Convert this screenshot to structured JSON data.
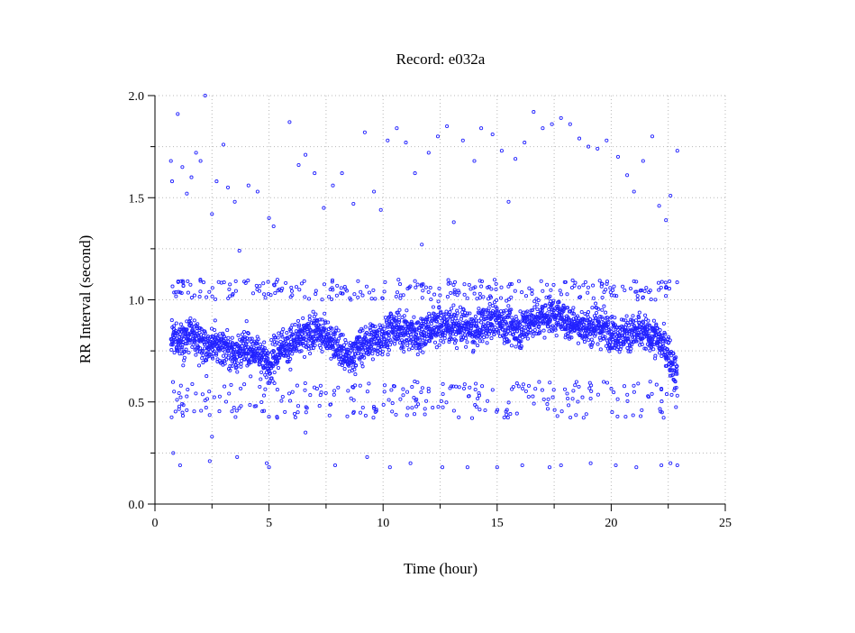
{
  "chart_data": {
    "type": "scatter",
    "title": "Record:  e032a",
    "xlabel": "Time (hour)",
    "ylabel": "RR Interval (second)",
    "xlim": [
      0,
      25
    ],
    "ylim": [
      0,
      2
    ],
    "x_ticks": [
      0,
      5,
      10,
      15,
      20,
      25
    ],
    "x_tick_labels": [
      "0",
      "5",
      "10",
      "15",
      "20",
      "25"
    ],
    "y_ticks": [
      0,
      0.5,
      1,
      1.5,
      2
    ],
    "y_tick_labels": [
      "0.0",
      "0.5",
      "1.0",
      "1.5",
      "2.0"
    ],
    "grid": true,
    "marker": "open-circle",
    "point_color": "#2222ff",
    "recording_span_hours": [
      0.7,
      22.9
    ],
    "dense_band": [
      [
        0.7,
        0.8
      ],
      [
        1.0,
        0.81
      ],
      [
        1.5,
        0.82
      ],
      [
        2.0,
        0.8
      ],
      [
        2.3,
        0.75
      ],
      [
        2.5,
        0.78
      ],
      [
        3.0,
        0.77
      ],
      [
        3.5,
        0.74
      ],
      [
        4.0,
        0.76
      ],
      [
        4.5,
        0.74
      ],
      [
        5.0,
        0.68
      ],
      [
        5.5,
        0.77
      ],
      [
        6.0,
        0.79
      ],
      [
        6.5,
        0.81
      ],
      [
        7.0,
        0.84
      ],
      [
        7.5,
        0.83
      ],
      [
        8.0,
        0.77
      ],
      [
        8.5,
        0.71
      ],
      [
        9.0,
        0.77
      ],
      [
        9.5,
        0.8
      ],
      [
        10.0,
        0.82
      ],
      [
        10.5,
        0.86
      ],
      [
        11.0,
        0.85
      ],
      [
        11.5,
        0.82
      ],
      [
        12.0,
        0.86
      ],
      [
        12.5,
        0.88
      ],
      [
        13.0,
        0.87
      ],
      [
        13.5,
        0.87
      ],
      [
        14.0,
        0.84
      ],
      [
        14.5,
        0.89
      ],
      [
        15.0,
        0.9
      ],
      [
        15.5,
        0.87
      ],
      [
        16.0,
        0.86
      ],
      [
        16.5,
        0.9
      ],
      [
        17.0,
        0.92
      ],
      [
        17.5,
        0.93
      ],
      [
        18.0,
        0.9
      ],
      [
        18.5,
        0.88
      ],
      [
        19.0,
        0.86
      ],
      [
        19.5,
        0.87
      ],
      [
        20.0,
        0.85
      ],
      [
        20.5,
        0.83
      ],
      [
        21.0,
        0.84
      ],
      [
        21.5,
        0.84
      ],
      [
        22.0,
        0.81
      ],
      [
        22.5,
        0.74
      ],
      [
        22.9,
        0.62
      ]
    ],
    "band_spread": 0.07,
    "outliers": [
      [
        0.7,
        1.68
      ],
      [
        0.75,
        1.58
      ],
      [
        1.0,
        1.91
      ],
      [
        1.2,
        1.65
      ],
      [
        1.4,
        1.52
      ],
      [
        1.6,
        1.6
      ],
      [
        1.8,
        1.72
      ],
      [
        2.0,
        1.68
      ],
      [
        2.2,
        2.0
      ],
      [
        2.5,
        1.42
      ],
      [
        2.7,
        1.58
      ],
      [
        3.0,
        1.76
      ],
      [
        3.2,
        1.55
      ],
      [
        3.5,
        1.48
      ],
      [
        3.7,
        1.24
      ],
      [
        4.1,
        1.56
      ],
      [
        4.5,
        1.53
      ],
      [
        5.0,
        1.4
      ],
      [
        5.2,
        1.36
      ],
      [
        5.9,
        1.87
      ],
      [
        6.3,
        1.66
      ],
      [
        6.6,
        1.71
      ],
      [
        7.0,
        1.62
      ],
      [
        7.4,
        1.45
      ],
      [
        7.8,
        1.56
      ],
      [
        8.2,
        1.62
      ],
      [
        8.7,
        1.47
      ],
      [
        9.2,
        1.82
      ],
      [
        9.6,
        1.53
      ],
      [
        9.9,
        1.44
      ],
      [
        10.2,
        1.78
      ],
      [
        10.6,
        1.84
      ],
      [
        11.0,
        1.77
      ],
      [
        11.4,
        1.62
      ],
      [
        11.7,
        1.27
      ],
      [
        12.0,
        1.72
      ],
      [
        12.4,
        1.8
      ],
      [
        12.8,
        1.85
      ],
      [
        13.1,
        1.38
      ],
      [
        13.5,
        1.78
      ],
      [
        14.0,
        1.68
      ],
      [
        14.3,
        1.84
      ],
      [
        14.8,
        1.81
      ],
      [
        15.2,
        1.73
      ],
      [
        15.5,
        1.48
      ],
      [
        15.8,
        1.69
      ],
      [
        16.2,
        1.77
      ],
      [
        16.6,
        1.92
      ],
      [
        17.0,
        1.84
      ],
      [
        17.4,
        1.86
      ],
      [
        17.8,
        1.89
      ],
      [
        18.2,
        1.86
      ],
      [
        18.6,
        1.79
      ],
      [
        19.0,
        1.75
      ],
      [
        19.4,
        1.74
      ],
      [
        19.8,
        1.78
      ],
      [
        20.3,
        1.7
      ],
      [
        20.7,
        1.61
      ],
      [
        21.0,
        1.53
      ],
      [
        21.4,
        1.68
      ],
      [
        21.8,
        1.8
      ],
      [
        22.1,
        1.46
      ],
      [
        22.4,
        1.39
      ],
      [
        22.6,
        1.51
      ],
      [
        22.9,
        1.73
      ],
      [
        0.8,
        0.25
      ],
      [
        1.1,
        0.19
      ],
      [
        2.4,
        0.21
      ],
      [
        2.5,
        0.33
      ],
      [
        3.6,
        0.23
      ],
      [
        4.9,
        0.2
      ],
      [
        5.0,
        0.18
      ],
      [
        6.6,
        0.35
      ],
      [
        7.9,
        0.19
      ],
      [
        9.3,
        0.23
      ],
      [
        10.3,
        0.18
      ],
      [
        11.2,
        0.2
      ],
      [
        12.6,
        0.18
      ],
      [
        13.7,
        0.18
      ],
      [
        15.0,
        0.18
      ],
      [
        16.1,
        0.19
      ],
      [
        17.3,
        0.18
      ],
      [
        17.8,
        0.19
      ],
      [
        19.1,
        0.2
      ],
      [
        20.2,
        0.19
      ],
      [
        21.1,
        0.18
      ],
      [
        22.2,
        0.19
      ],
      [
        22.6,
        0.2
      ],
      [
        22.9,
        0.19
      ]
    ],
    "sparse_scatter_ranges": [
      [
        0.7,
        22.9,
        0.42,
        0.6
      ],
      [
        0.7,
        22.9,
        1.0,
        1.1
      ]
    ]
  }
}
